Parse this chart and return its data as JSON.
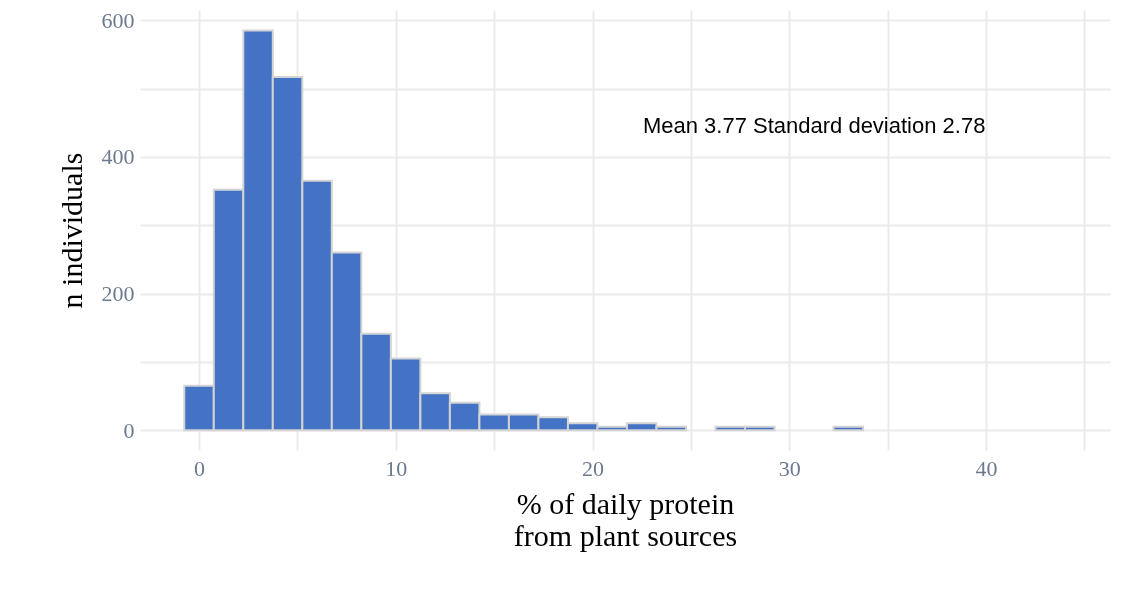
{
  "chart_data": {
    "type": "histogram",
    "xlabel": "% of daily protein\nfrom plant sources",
    "ylabel": "n individuals",
    "annotations": [
      "Mean 3.77 Standard deviation 2.78"
    ],
    "bins": [
      -0.75,
      0.75,
      2.25,
      3.75,
      5.25,
      6.75,
      8.25,
      9.75,
      11.25,
      12.75,
      14.25,
      15.75,
      17.25,
      18.75,
      20.25,
      21.75,
      23.25,
      24.75,
      26.25,
      27.75,
      29.25,
      30.75,
      32.25,
      33.75,
      35.25,
      36.75,
      38.25,
      39.75,
      41.25,
      42.75,
      44.25
    ],
    "values": [
      65,
      352,
      585,
      517,
      365,
      260,
      141,
      105,
      54,
      40,
      23,
      23,
      19,
      10,
      5,
      10,
      5,
      0,
      5,
      5,
      0,
      0,
      5,
      0,
      0,
      0,
      0,
      0,
      0,
      0
    ],
    "color": "#4472c4",
    "xlim": [
      -3,
      46.3
    ],
    "ylim": [
      -29,
      615
    ],
    "xticks": [
      0,
      {
        "value": 5,
        "label": null
      },
      10,
      {
        "value": 15,
        "label": null
      },
      20,
      {
        "value": 25,
        "label": null
      },
      30,
      {
        "value": 35,
        "label": null
      },
      40,
      {
        "value": 45,
        "label": null
      }
    ],
    "yticks": [
      0,
      {
        "value": 100,
        "label": null
      },
      200,
      {
        "value": 300,
        "label": null
      },
      400,
      {
        "value": 500,
        "label": null
      },
      600
    ],
    "grid": true
  }
}
